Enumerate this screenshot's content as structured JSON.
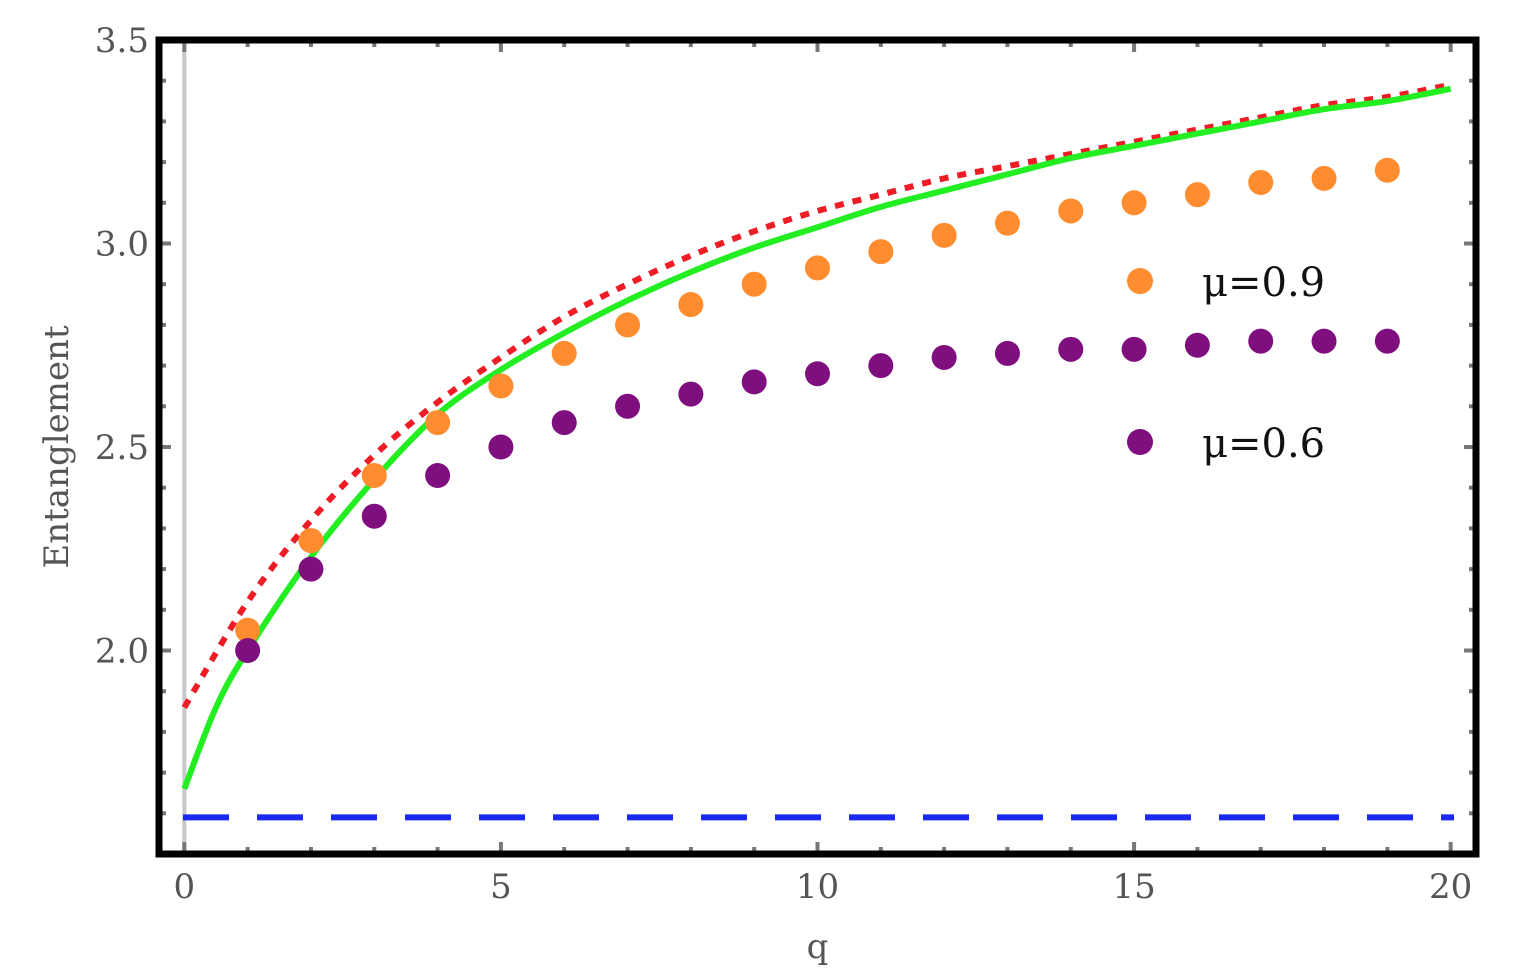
{
  "chart_data": {
    "type": "scatter",
    "title": "",
    "xlabel": "q",
    "ylabel": "Entanglement",
    "xlim": [
      -0.4,
      20.4
    ],
    "ylim": [
      1.5,
      3.5
    ],
    "x_ticks": [
      0,
      5,
      10,
      15,
      20
    ],
    "x_tick_labels": [
      "0",
      "5",
      "10",
      "15",
      "20"
    ],
    "y_ticks": [
      2.0,
      2.5,
      3.0,
      3.5
    ],
    "y_tick_labels": [
      "2.0",
      "2.5",
      "3.0",
      "3.5"
    ],
    "grid": false,
    "legend_position": "right",
    "series": [
      {
        "name": "μ=0.9",
        "kind": "points",
        "color": "#ff8c2e",
        "x": [
          1,
          2,
          3,
          4,
          5,
          6,
          7,
          8,
          9,
          10,
          11,
          12,
          13,
          14,
          15,
          16,
          17,
          18,
          19
        ],
        "y": [
          2.05,
          2.27,
          2.43,
          2.56,
          2.65,
          2.73,
          2.8,
          2.85,
          2.9,
          2.94,
          2.98,
          3.02,
          3.05,
          3.08,
          3.1,
          3.12,
          3.15,
          3.16,
          3.18
        ]
      },
      {
        "name": "μ=0.6",
        "kind": "points",
        "color": "#7f0f7e",
        "x": [
          1,
          2,
          3,
          4,
          5,
          6,
          7,
          8,
          9,
          10,
          11,
          12,
          13,
          14,
          15,
          16,
          17,
          18,
          19
        ],
        "y": [
          2.0,
          2.2,
          2.33,
          2.43,
          2.5,
          2.56,
          2.6,
          2.63,
          2.66,
          2.68,
          2.7,
          2.72,
          2.73,
          2.74,
          2.74,
          2.75,
          2.76,
          2.76,
          2.76
        ]
      },
      {
        "kind": "line",
        "style": "dotted",
        "color": "#ee1c25",
        "x": [
          0,
          1,
          2,
          3,
          4,
          5,
          6,
          7,
          8,
          9,
          10,
          11,
          12,
          13,
          14,
          15,
          16,
          17,
          18,
          19,
          20
        ],
        "y": [
          1.86,
          2.12,
          2.32,
          2.48,
          2.61,
          2.72,
          2.82,
          2.9,
          2.97,
          3.03,
          3.08,
          3.12,
          3.16,
          3.19,
          3.22,
          3.25,
          3.28,
          3.31,
          3.34,
          3.36,
          3.39
        ]
      },
      {
        "kind": "line",
        "style": "solid",
        "color": "#22ee22",
        "x": [
          0,
          0.5,
          1,
          2,
          3,
          4,
          5,
          6,
          7,
          8,
          9,
          10,
          11,
          12,
          13,
          14,
          15,
          16,
          17,
          18,
          19,
          20
        ],
        "y": [
          1.66,
          1.86,
          2.0,
          2.23,
          2.42,
          2.58,
          2.69,
          2.78,
          2.86,
          2.93,
          2.99,
          3.04,
          3.09,
          3.13,
          3.17,
          3.21,
          3.24,
          3.27,
          3.3,
          3.33,
          3.35,
          3.38
        ]
      },
      {
        "kind": "line",
        "style": "dashed",
        "color": "#1a28f0",
        "x": [
          0,
          20.4
        ],
        "y": [
          1.59,
          1.59
        ]
      }
    ]
  }
}
